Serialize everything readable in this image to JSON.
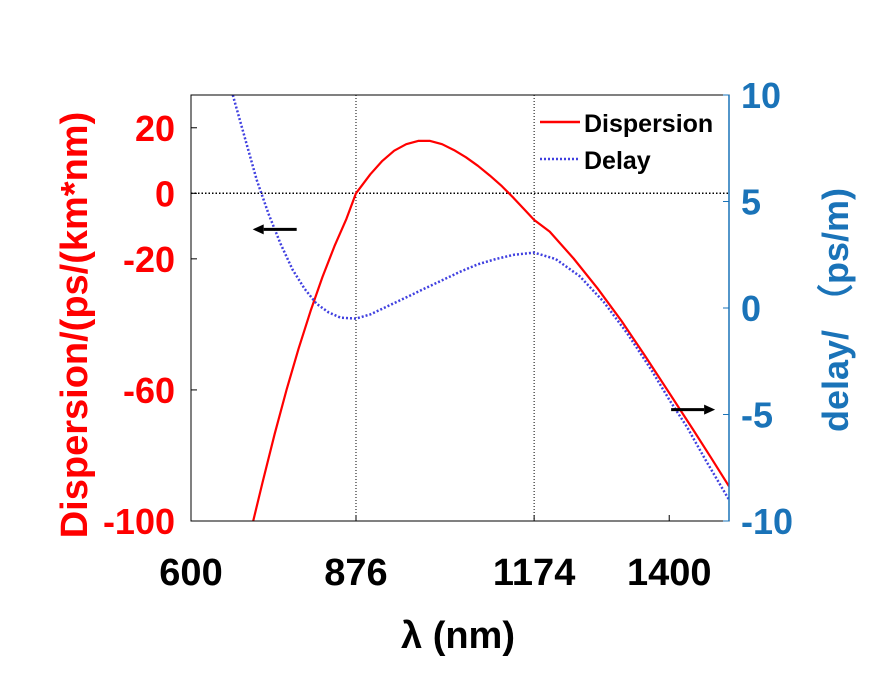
{
  "chart_data": {
    "type": "line",
    "xlabel": "λ (nm)",
    "ylabel_left": "Dispersion/(ps/(km*nm)",
    "ylabel_right": "delay/ （ps/m)",
    "xlim": [
      600,
      1500
    ],
    "ylim_left": [
      -100,
      30
    ],
    "ylim_right": [
      -10,
      10
    ],
    "x_ticks": [
      600,
      876,
      1174,
      1400
    ],
    "x_tick_labels": [
      "600",
      "876",
      "1174",
      "1400"
    ],
    "y_left_ticks": [
      20,
      0,
      -20,
      -60,
      -100
    ],
    "y_left_tick_labels": [
      "20",
      "0",
      "-20",
      "-60",
      "-100"
    ],
    "y_right_ticks": [
      10,
      5,
      0,
      -5,
      -10
    ],
    "y_right_tick_labels": [
      "10",
      "5",
      "0",
      "-5",
      "-10"
    ],
    "vertical_reference_lines_x": [
      876,
      1174
    ],
    "horizontal_reference_line_left_y": 0,
    "legend_position": "top-right",
    "series": [
      {
        "name": "Dispersion",
        "axis": "left",
        "color": "#ff0000",
        "style": "solid",
        "x": [
          704,
          720,
          740,
          760,
          780,
          800,
          820,
          840,
          860,
          876,
          900,
          920,
          940,
          960,
          980,
          1000,
          1020,
          1040,
          1060,
          1080,
          1100,
          1120,
          1140,
          1160,
          1174,
          1200,
          1240,
          1280,
          1320,
          1360,
          1400,
          1440,
          1470,
          1500
        ],
        "values": [
          -100,
          -88,
          -73.4,
          -59.9,
          -47.4,
          -35.9,
          -25.5,
          -16.1,
          -7.8,
          0,
          5.8,
          9.9,
          13,
          15,
          16,
          16,
          15,
          13.2,
          11,
          8.4,
          5.4,
          2.2,
          -1.5,
          -5.4,
          -8.1,
          -11.7,
          -19.9,
          -29,
          -38.9,
          -49.7,
          -60.9,
          -72.1,
          -80.7,
          -89.4
        ]
      },
      {
        "name": "Delay",
        "axis": "right",
        "color": "#4040e0",
        "style": "dotted",
        "x": [
          670,
          690,
          710,
          730,
          750,
          770,
          790,
          810,
          830,
          850,
          876,
          900,
          930,
          960,
          990,
          1020,
          1050,
          1080,
          1110,
          1140,
          1174,
          1210,
          1250,
          1290,
          1330,
          1370,
          1400,
          1430,
          1460,
          1500
        ],
        "values": [
          10,
          8,
          6,
          4.4,
          3,
          1.8,
          0.9,
          0.2,
          -0.2,
          -0.45,
          -0.5,
          -0.3,
          0.1,
          0.5,
          0.9,
          1.3,
          1.7,
          2.05,
          2.3,
          2.5,
          2.6,
          2.3,
          1.5,
          0.3,
          -1.2,
          -2.9,
          -4.3,
          -5.6,
          -7.1,
          -9
        ]
      }
    ],
    "annotations": [
      {
        "text": "",
        "type": "arrow",
        "direction": "left",
        "at": {
          "x": 740,
          "y_left": -11
        }
      },
      {
        "text": "",
        "type": "arrow",
        "direction": "right",
        "at": {
          "x": 1440,
          "y_left": -66
        }
      }
    ]
  }
}
